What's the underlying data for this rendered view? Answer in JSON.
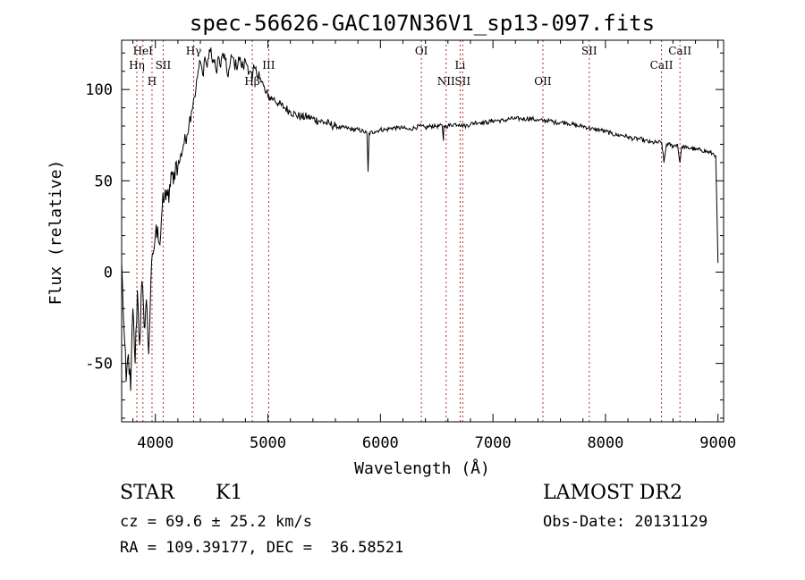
{
  "chart_data": {
    "type": "line",
    "title": "spec-56626-GAC107N36V1_sp13-097.fits",
    "xlabel": "Wavelength (Å)",
    "ylabel": "Flux (relative)",
    "xlim": [
      3700,
      9050
    ],
    "ylim": [
      -82,
      127
    ],
    "xticks": [
      4000,
      5000,
      6000,
      7000,
      8000,
      9000
    ],
    "yticks": [
      -50,
      0,
      50,
      100
    ],
    "grid": false,
    "series": [
      {
        "x": [
          3700,
          3720,
          3740,
          3760,
          3780,
          3800,
          3820,
          3840,
          3860,
          3880,
          3900,
          3920,
          3940,
          3960,
          3980,
          4000,
          4020,
          4040,
          4060,
          4080,
          4100,
          4120,
          4140,
          4160,
          4180,
          4200,
          4220,
          4250,
          4280,
          4300,
          4320,
          4340,
          4360,
          4380,
          4400,
          4420,
          4440,
          4460,
          4480,
          4500,
          4520,
          4540,
          4560,
          4580,
          4600,
          4620,
          4640,
          4660,
          4680,
          4700,
          4720,
          4740,
          4760,
          4780,
          4800,
          4820,
          4840,
          4860,
          4880,
          4900,
          4920,
          4940,
          4960,
          4980,
          5000,
          5050,
          5100,
          5150,
          5200,
          5250,
          5300,
          5350,
          5400,
          5450,
          5500,
          5550,
          5600,
          5650,
          5700,
          5750,
          5800,
          5850,
          5880,
          5890,
          5900,
          5950,
          6000,
          6050,
          6100,
          6150,
          6200,
          6250,
          6300,
          6350,
          6400,
          6450,
          6500,
          6550,
          6560,
          6563,
          6570,
          6600,
          6650,
          6700,
          6750,
          6800,
          6850,
          6900,
          6950,
          7000,
          7050,
          7100,
          7150,
          7200,
          7250,
          7300,
          7350,
          7400,
          7450,
          7500,
          7550,
          7600,
          7650,
          7700,
          7750,
          7800,
          7850,
          7900,
          7950,
          8000,
          8050,
          8100,
          8150,
          8200,
          8250,
          8300,
          8350,
          8400,
          8450,
          8500,
          8520,
          8542,
          8560,
          8600,
          8640,
          8662,
          8680,
          8720,
          8760,
          8800,
          8850,
          8900,
          8950,
          8980,
          9000
        ],
        "y": [
          5,
          -30,
          -60,
          -45,
          -65,
          -20,
          -50,
          -10,
          -40,
          -5,
          -30,
          -15,
          -45,
          -5,
          10,
          20,
          25,
          15,
          35,
          40,
          45,
          38,
          55,
          48,
          60,
          58,
          62,
          70,
          75,
          82,
          88,
          95,
          100,
          110,
          115,
          108,
          118,
          112,
          122,
          118,
          115,
          110,
          118,
          112,
          120,
          116,
          108,
          112,
          118,
          115,
          112,
          118,
          114,
          112,
          116,
          113,
          110,
          105,
          112,
          108,
          110,
          104,
          102,
          98,
          96,
          95,
          92,
          90,
          88,
          86,
          85,
          85,
          84,
          83,
          82,
          81,
          80,
          79,
          79,
          78,
          78,
          77,
          76,
          55,
          76,
          77,
          78,
          78,
          79,
          79,
          79,
          78,
          79,
          80,
          79,
          80,
          80,
          80,
          72,
          80,
          80,
          80,
          81,
          81,
          80,
          81,
          82,
          82,
          82,
          83,
          83,
          83,
          84,
          84,
          84,
          84,
          84,
          83,
          83,
          83,
          82,
          82,
          82,
          81,
          80,
          80,
          79,
          78,
          78,
          77,
          76,
          75,
          75,
          74,
          73,
          73,
          72,
          71,
          71,
          71,
          60,
          70,
          70,
          69,
          70,
          60,
          69,
          68,
          68,
          67,
          67,
          66,
          65,
          64,
          5
        ]
      }
    ],
    "lines": [
      {
        "label": "Hη",
        "x": 3835,
        "row": 2
      },
      {
        "label": "HeI",
        "x": 3889,
        "row": 1
      },
      {
        "label": "H",
        "x": 3970,
        "row": 3
      },
      {
        "label": "SII",
        "x": 4069,
        "row": 2
      },
      {
        "label": "Hγ",
        "x": 4340,
        "row": 1
      },
      {
        "label": "Hβ",
        "x": 4861,
        "row": 3
      },
      {
        "label": "III",
        "x": 5007,
        "row": 2
      },
      {
        "label": "OI",
        "x": 6364,
        "row": 1
      },
      {
        "label": "NII",
        "x": 6584,
        "row": 3
      },
      {
        "label": "Li",
        "x": 6708,
        "row": 2
      },
      {
        "label": "SII",
        "x": 6731,
        "row": 3
      },
      {
        "label": "OII",
        "x": 7444,
        "row": 3
      },
      {
        "label": "SII",
        "x": 7856,
        "row": 1
      },
      {
        "label": "CaII",
        "x": 8498,
        "row": 2
      },
      {
        "label": "CaII",
        "x": 8662,
        "row": 1
      }
    ]
  },
  "info": {
    "class_label": "STAR",
    "subclass": "K1",
    "survey": "LAMOST DR2",
    "cz_text": "cz = 69.6 ± 25.2 km/s",
    "obs_date_text": "Obs-Date: 20131129",
    "coords_text": "RA = 109.39177, DEC =  36.58521"
  }
}
